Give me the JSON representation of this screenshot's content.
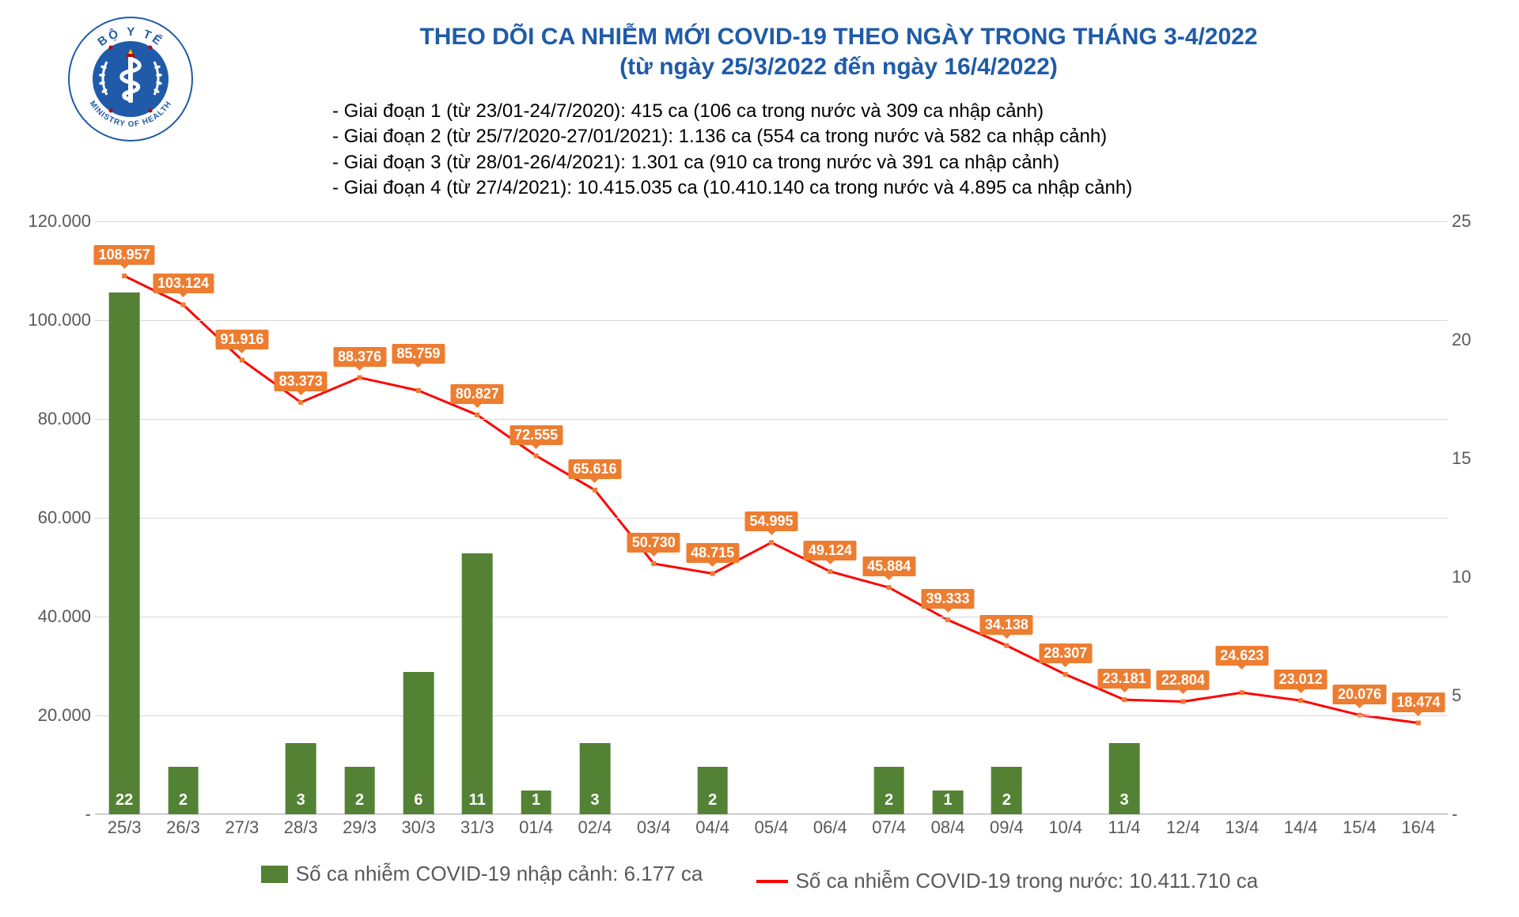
{
  "title": {
    "line1": "THEO DÕI CA NHIỄM MỚI COVID-19 THEO NGÀY TRONG THÁNG 3-4/2022",
    "line2": "(từ ngày 25/3/2022 đến ngày 16/4/2022)",
    "color": "#1f5ba8",
    "fontsize": 30
  },
  "notes": [
    "- Giai đoạn 1 (từ 23/01-24/7/2020): 415 ca (106 ca trong nước và 309 ca nhập cảnh)",
    "- Giai đoạn 2 (từ 25/7/2020-27/01/2021): 1.136 ca (554 ca trong nước và 582 ca nhập cảnh)",
    "- Giai đoạn 3 (từ 28/01-26/4/2021): 1.301 ca (910 ca trong nước và 391 ca nhập cảnh)",
    "- Giai đoạn 4 (từ 27/4/2021): 10.415.035 ca (10.410.140 ca trong nước và 4.895 ca nhập cảnh)"
  ],
  "logo": {
    "outer_text_top": "BỘ Y TẾ",
    "outer_text_bottom": "MINISTRY OF HEALTH",
    "ring_color": "#1f5ba8",
    "inner_color": "#1f5ba8",
    "accent_color": "#c00000"
  },
  "chart": {
    "type": "combo-bar-line",
    "categories": [
      "25/3",
      "26/3",
      "27/3",
      "28/3",
      "29/3",
      "30/3",
      "31/3",
      "01/4",
      "02/4",
      "03/4",
      "04/4",
      "05/4",
      "06/4",
      "07/4",
      "08/4",
      "09/4",
      "10/4",
      "11/4",
      "12/4",
      "13/4",
      "14/4",
      "15/4",
      "16/4"
    ],
    "bars": {
      "values": [
        22,
        2,
        0,
        3,
        2,
        6,
        11,
        1,
        3,
        0,
        2,
        0,
        0,
        2,
        1,
        2,
        0,
        3,
        0,
        0,
        0,
        0,
        0
      ],
      "labels": [
        "22",
        "2",
        "-",
        "3",
        "2",
        "6",
        "11",
        "1",
        "3",
        "-",
        "2",
        "-",
        "-",
        "2",
        "1",
        "2",
        "-",
        "3",
        "-",
        "-",
        "-",
        "-",
        "-"
      ],
      "color": "#548235",
      "axis": "right",
      "bar_width_frac": 0.52
    },
    "line": {
      "values": [
        108957,
        103124,
        91916,
        83373,
        88376,
        85759,
        80827,
        72555,
        65616,
        50730,
        48715,
        54995,
        49124,
        45884,
        39333,
        34138,
        28307,
        23181,
        22804,
        24623,
        23012,
        20076,
        18474
      ],
      "labels": [
        "108.957",
        "103.124",
        "91.916",
        "83.373",
        "88.376",
        "85.759",
        "80.827",
        "72.555",
        "65.616",
        "50.730",
        "48.715",
        "54.995",
        "49.124",
        "45.884",
        "39.333",
        "34.138",
        "28.307",
        "23.181",
        "22.804",
        "24.623",
        "23.012",
        "20.076",
        "18.474"
      ],
      "color_line": "#ff0000",
      "color_marker": "#ed7d31",
      "label_bg": "#ed7d31",
      "line_width": 3,
      "marker_size": 6,
      "axis": "left"
    },
    "y_left": {
      "min": 0,
      "max": 120000,
      "step": 20000,
      "tick_labels": [
        "-",
        "20.000",
        "40.000",
        "60.000",
        "80.000",
        "100.000",
        "120.000"
      ]
    },
    "y_right": {
      "min": 0,
      "max": 25,
      "step": 5,
      "tick_labels": [
        "-",
        "5",
        "10",
        "15",
        "20",
        "25"
      ]
    },
    "grid_color": "#d9d9d9",
    "background": "#ffffff",
    "tick_fontsize": 22,
    "tick_color": "#595959"
  },
  "legend": {
    "bar_text": "Số ca nhiễm COVID-19 nhập cảnh: 6.177 ca",
    "line_text": "Số ca nhiễm COVID-19 trong nước: 10.411.710 ca",
    "fontsize": 26,
    "color": "#595959"
  }
}
